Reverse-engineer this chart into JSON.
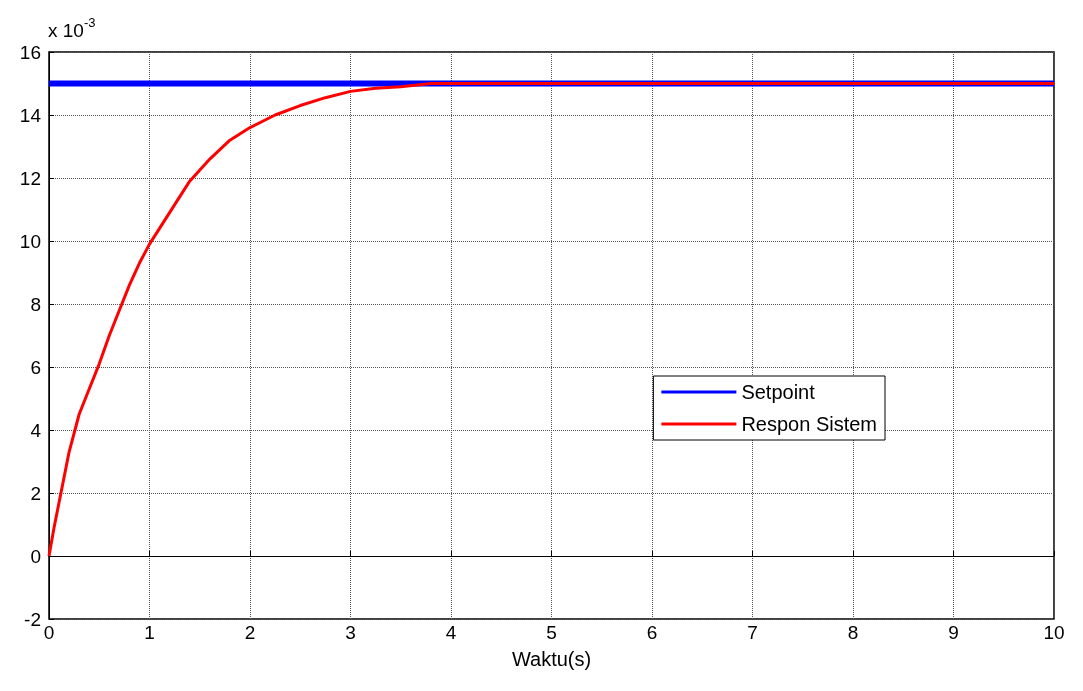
{
  "chart_data": {
    "type": "line",
    "xlabel": "Waktu(s)",
    "annotations": [
      "x 10$^{-3}$"
    ],
    "series": [
      {
        "name": "Setpoint",
        "color": "#0000ff",
        "x": [
          0,
          10
        ],
        "values": [
          15,
          15
        ]
      },
      {
        "name": "Respon Sistem",
        "color": "#ff0000",
        "x": [
          0,
          0.05,
          0.1,
          0.2,
          0.3,
          0.4,
          0.5,
          0.6,
          0.7,
          0.8,
          0.9,
          1,
          1.2,
          1.4,
          1.6,
          1.8,
          2,
          2.25,
          2.5,
          2.75,
          3,
          3.25,
          3.5,
          3.8,
          4.4,
          5.2,
          10
        ],
        "values": [
          0,
          0.9,
          1.7,
          3.3,
          4.5,
          5.3,
          6.1,
          7.0,
          7.8,
          8.6,
          9.3,
          9.9,
          10.9,
          11.9,
          12.6,
          13.2,
          13.6,
          14.0,
          14.3,
          14.55,
          14.75,
          14.85,
          14.9,
          15,
          15,
          15,
          15
        ]
      }
    ],
    "xlim": [
      0,
      10
    ],
    "xticks": [
      0,
      1,
      2,
      3,
      4,
      5,
      6,
      7,
      8,
      9,
      10
    ],
    "ylim": [
      -2,
      16
    ],
    "yticks": [
      -2,
      0,
      2,
      4,
      6,
      8,
      10,
      12,
      14,
      16
    ],
    "grid": true,
    "legend": "right",
    "marker": "none",
    "line_style": "solid"
  }
}
